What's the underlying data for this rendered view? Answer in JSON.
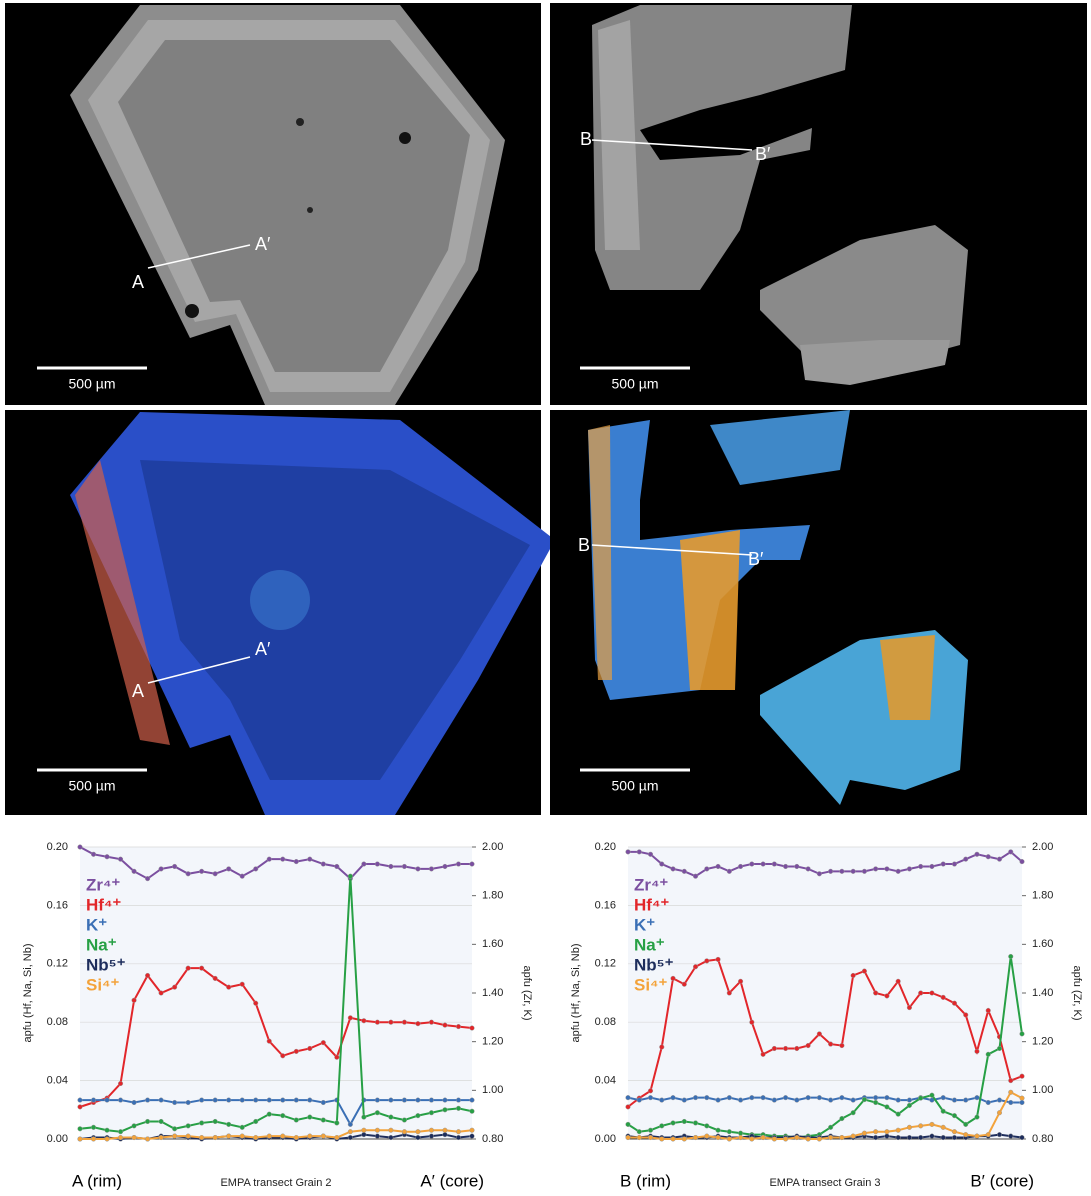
{
  "images": [
    {
      "labels": [
        "A",
        "A′"
      ],
      "scale_bar": "500 µm"
    },
    {
      "labels": [
        "B",
        "B′"
      ],
      "scale_bar": "500 µm"
    },
    {
      "labels": [
        "A",
        "A′"
      ],
      "scale_bar": "500 µm"
    },
    {
      "labels": [
        "B",
        "B′"
      ],
      "scale_bar": "500 µm"
    }
  ],
  "chart_data": [
    {
      "type": "line",
      "xlabel": "EMPA transect Grain 2",
      "x_start_label": "A (rim)",
      "x_end_label": "A′ (core)",
      "ylabel": "apfu (Hf, Na, Si, Nb)",
      "y2label": "apfu (Zr, K)",
      "categories": [
        null,
        null,
        null,
        null,
        null,
        null,
        null,
        null,
        null,
        null,
        null,
        null,
        null,
        null,
        null,
        null,
        null,
        null,
        null,
        null,
        null,
        null,
        null,
        null,
        null,
        null,
        null,
        null,
        null,
        null
      ],
      "ylim": [
        0,
        0.2
      ],
      "yticks": [
        {
          "value": 0,
          "label": "0.00"
        },
        0.04,
        0.08,
        0.12,
        0.16,
        {
          "value": 0.2,
          "label": "0.20"
        }
      ],
      "y2lim": [
        0.8,
        2.0
      ],
      "y2ticks": [
        {
          "value": 0.8,
          "label": "0.80"
        },
        {
          "value": 1,
          "label": "1.00"
        },
        {
          "value": 1.2,
          "label": "1.20"
        },
        {
          "value": 1.4,
          "label": "1.40"
        },
        {
          "value": 1.6,
          "label": "1.60"
        },
        {
          "value": 1.8,
          "label": "1.80"
        },
        {
          "value": 2,
          "label": "2.00"
        }
      ],
      "grid": true,
      "series": [
        {
          "name": "Zr⁴⁺",
          "color": "#7b4fa0",
          "axis": "y2",
          "values": [
            2.0,
            1.97,
            1.96,
            1.95,
            1.9,
            1.87,
            1.91,
            1.92,
            1.89,
            1.9,
            1.89,
            1.91,
            1.88,
            1.91,
            1.95,
            1.95,
            1.94,
            1.95,
            1.93,
            1.92,
            1.87,
            1.93,
            1.93,
            1.92,
            1.92,
            1.91,
            1.91,
            1.92,
            1.93,
            1.93
          ]
        },
        {
          "name": "Hf⁴⁺",
          "color": "#e2262a",
          "values": [
            0.022,
            0.025,
            0.028,
            0.038,
            0.095,
            0.112,
            0.1,
            0.104,
            0.117,
            0.117,
            0.11,
            0.104,
            0.106,
            0.093,
            0.067,
            0.057,
            0.06,
            0.062,
            0.066,
            0.056,
            0.083,
            0.081,
            0.08,
            0.08,
            0.08,
            0.079,
            0.08,
            0.078,
            0.077,
            0.076
          ]
        },
        {
          "name": "K⁺",
          "color": "#3a6fb5",
          "axis": "y2",
          "values": [
            0.96,
            0.96,
            0.96,
            0.96,
            0.95,
            0.96,
            0.96,
            0.95,
            0.95,
            0.96,
            0.96,
            0.96,
            0.96,
            0.96,
            0.96,
            0.96,
            0.96,
            0.96,
            0.95,
            0.96,
            0.86,
            0.96,
            0.96,
            0.96,
            0.96,
            0.96,
            0.96,
            0.96,
            0.96,
            0.96
          ]
        },
        {
          "name": "Na⁺",
          "color": "#27a045",
          "values": [
            0.007,
            0.008,
            0.006,
            0.005,
            0.009,
            0.012,
            0.012,
            0.007,
            0.009,
            0.011,
            0.012,
            0.01,
            0.008,
            0.012,
            0.017,
            0.016,
            0.013,
            0.015,
            0.013,
            0.011,
            0.18,
            0.015,
            0.018,
            0.015,
            0.013,
            0.016,
            0.018,
            0.02,
            0.021,
            0.019
          ]
        },
        {
          "name": "Nb⁵⁺",
          "color": "#1d2d5c",
          "values": [
            0.0,
            0.001,
            0.001,
            0.0,
            0.001,
            0.0,
            0.002,
            0.002,
            0.001,
            0.0,
            0.001,
            0.002,
            0.001,
            0.0,
            0.001,
            0.001,
            0.0,
            0.001,
            0.002,
            0.0,
            0.001,
            0.003,
            0.002,
            0.001,
            0.003,
            0.001,
            0.002,
            0.003,
            0.001,
            0.002
          ]
        },
        {
          "name": "Si⁴⁺",
          "color": "#f3a33b",
          "values": [
            0,
            0,
            0,
            0.001,
            0.001,
            0,
            0.001,
            0.002,
            0.002,
            0.001,
            0.001,
            0.002,
            0.002,
            0.001,
            0.002,
            0.002,
            0.001,
            0.002,
            0.002,
            0.001,
            0.005,
            0.006,
            0.006,
            0.006,
            0.005,
            0.005,
            0.006,
            0.006,
            0.005,
            0.006
          ]
        }
      ]
    },
    {
      "type": "line",
      "xlabel": "EMPA transect Grain 3",
      "x_start_label": "B (rim)",
      "x_end_label": "B′ (core)",
      "ylabel": "apfu (Hf, Na, Si, Nb)",
      "y2label": "apfu (Zr, K)",
      "categories": [
        null,
        null,
        null,
        null,
        null,
        null,
        null,
        null,
        null,
        null,
        null,
        null,
        null,
        null,
        null,
        null,
        null,
        null,
        null,
        null,
        null,
        null,
        null,
        null,
        null,
        null,
        null,
        null,
        null,
        null,
        null,
        null,
        null,
        null,
        null,
        null
      ],
      "ylim": [
        0,
        0.2
      ],
      "yticks": [
        {
          "value": 0,
          "label": "0.00"
        },
        0.04,
        0.08,
        0.12,
        0.16,
        {
          "value": 0.2,
          "label": "0.20"
        }
      ],
      "y2lim": [
        0.8,
        2.0
      ],
      "y2ticks": [
        {
          "value": 0.8,
          "label": "0.80"
        },
        {
          "value": 1,
          "label": "1.00"
        },
        {
          "value": 1.2,
          "label": "1.20"
        },
        {
          "value": 1.4,
          "label": "1.40"
        },
        {
          "value": 1.6,
          "label": "1.60"
        },
        {
          "value": 1.8,
          "label": "1.80"
        },
        {
          "value": 2,
          "label": "2.00"
        }
      ],
      "grid": true,
      "series": [
        {
          "name": "Zr⁴⁺",
          "color": "#7b4fa0",
          "axis": "y2",
          "values": [
            1.98,
            1.98,
            1.97,
            1.93,
            1.91,
            1.9,
            1.88,
            1.91,
            1.92,
            1.9,
            1.92,
            1.93,
            1.93,
            1.93,
            1.92,
            1.92,
            1.91,
            1.89,
            1.9,
            1.9,
            1.9,
            1.9,
            1.91,
            1.91,
            1.9,
            1.91,
            1.92,
            1.92,
            1.93,
            1.93,
            1.95,
            1.97,
            1.96,
            1.95,
            1.98,
            1.94
          ]
        },
        {
          "name": "Hf⁴⁺",
          "color": "#e2262a",
          "values": [
            0.022,
            0.028,
            0.033,
            0.063,
            0.11,
            0.106,
            0.118,
            0.122,
            0.123,
            0.1,
            0.108,
            0.08,
            0.058,
            0.062,
            0.062,
            0.062,
            0.064,
            0.072,
            0.065,
            0.064,
            0.112,
            0.115,
            0.1,
            0.098,
            0.108,
            0.09,
            0.1,
            0.1,
            0.097,
            0.093,
            0.085,
            0.06,
            0.088,
            0.07,
            0.04,
            0.043
          ]
        },
        {
          "name": "K⁺",
          "color": "#3a6fb5",
          "axis": "y2",
          "values": [
            0.97,
            0.96,
            0.97,
            0.96,
            0.97,
            0.96,
            0.97,
            0.97,
            0.96,
            0.97,
            0.96,
            0.97,
            0.97,
            0.96,
            0.97,
            0.96,
            0.97,
            0.97,
            0.96,
            0.97,
            0.96,
            0.97,
            0.97,
            0.97,
            0.96,
            0.96,
            0.97,
            0.96,
            0.97,
            0.96,
            0.96,
            0.97,
            0.95,
            0.96,
            0.95,
            0.95
          ]
        },
        {
          "name": "Na⁺",
          "color": "#27a045",
          "values": [
            0.01,
            0.005,
            0.006,
            0.009,
            0.011,
            0.012,
            0.011,
            0.009,
            0.006,
            0.005,
            0.004,
            0.003,
            0.003,
            0.002,
            0.002,
            0.001,
            0.002,
            0.003,
            0.008,
            0.014,
            0.018,
            0.027,
            0.025,
            0.022,
            0.017,
            0.023,
            0.028,
            0.03,
            0.019,
            0.016,
            0.01,
            0.015,
            0.058,
            0.062,
            0.125,
            0.072
          ]
        },
        {
          "name": "Nb⁵⁺",
          "color": "#1d2d5c",
          "values": [
            0.002,
            0.001,
            0.002,
            0.001,
            0.001,
            0.002,
            0.001,
            0.001,
            0.002,
            0.001,
            0.001,
            0.002,
            0.001,
            0.001,
            0.001,
            0.002,
            0.001,
            0.001,
            0.002,
            0.001,
            0.001,
            0.002,
            0.001,
            0.002,
            0.001,
            0.001,
            0.001,
            0.002,
            0.001,
            0.001,
            0.001,
            0.002,
            0.002,
            0.003,
            0.002,
            0.001
          ]
        },
        {
          "name": "Si⁴⁺",
          "color": "#f3a33b",
          "values": [
            0.001,
            0.001,
            0.001,
            0.0,
            0.0,
            0.0,
            0.001,
            0.002,
            0.001,
            0.0,
            0.001,
            0.0,
            0.001,
            0.0,
            0.0,
            0.001,
            0.0,
            0.0,
            0.001,
            0.001,
            0.002,
            0.004,
            0.005,
            0.005,
            0.006,
            0.008,
            0.009,
            0.01,
            0.008,
            0.005,
            0.003,
            0.002,
            0.003,
            0.018,
            0.032,
            0.028
          ]
        }
      ]
    }
  ]
}
